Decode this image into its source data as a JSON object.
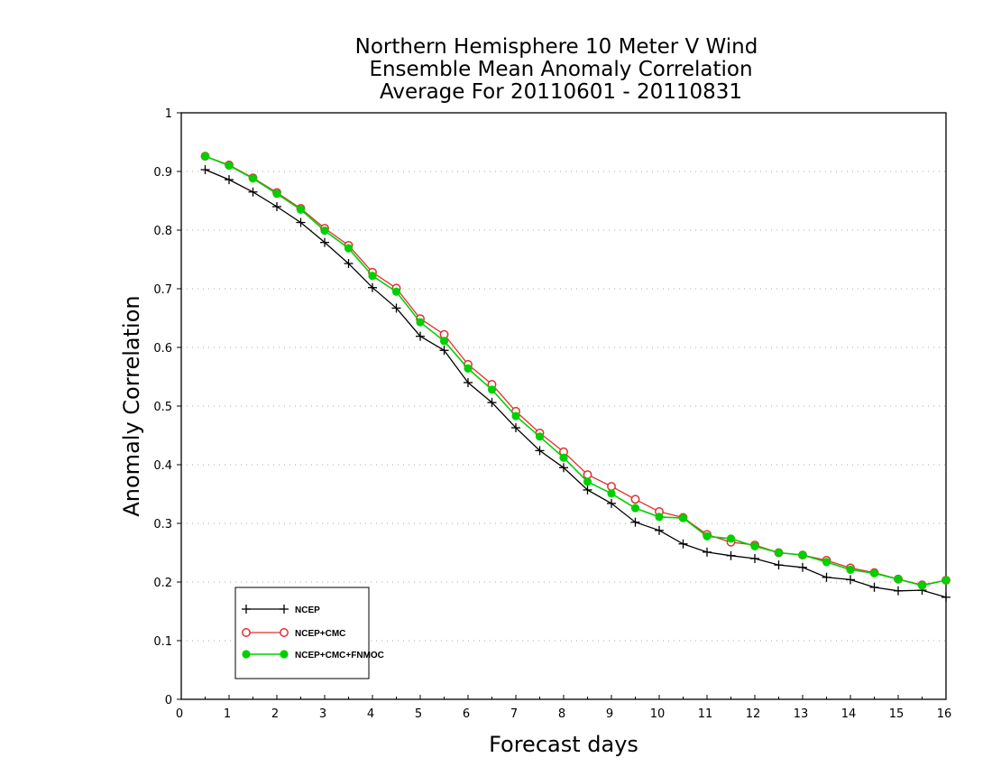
{
  "chart_data": {
    "type": "line",
    "title_lines": [
      "Northern Hemisphere 10 Meter V Wind",
      "Ensemble Mean Anomaly Correlation",
      "Average For 20110601 - 20110831"
    ],
    "xlabel": "Forecast days",
    "ylabel": "Anomaly Correlation",
    "xlim": [
      0,
      16
    ],
    "ylim": [
      0,
      1
    ],
    "xticks": [
      "0",
      "1",
      "2",
      "3",
      "4",
      "5",
      "6",
      "7",
      "8",
      "9",
      "10",
      "11",
      "12",
      "13",
      "14",
      "15",
      "16"
    ],
    "yticks": [
      "0",
      "0.1",
      "0.2",
      "0.3",
      "0.4",
      "0.5",
      "0.6",
      "0.7",
      "0.8",
      "0.9",
      "1"
    ],
    "grid": "horizontal dotted",
    "legend_position": "bottom-left",
    "x": [
      0.5,
      1,
      1.5,
      2,
      2.5,
      3,
      3.5,
      4,
      4.5,
      5,
      5.5,
      6,
      6.5,
      7,
      7.5,
      8,
      8.5,
      9,
      9.5,
      10,
      10.5,
      11,
      11.5,
      12,
      12.5,
      13,
      13.5,
      14,
      14.5,
      15,
      15.5,
      16
    ],
    "series": [
      {
        "name": "NCEP",
        "color": "#000000",
        "marker": "plus",
        "values": [
          0.903,
          0.886,
          0.865,
          0.84,
          0.813,
          0.779,
          0.743,
          0.702,
          0.667,
          0.619,
          0.595,
          0.54,
          0.506,
          0.463,
          0.424,
          0.395,
          0.357,
          0.334,
          0.302,
          0.288,
          0.265,
          0.251,
          0.245,
          0.24,
          0.229,
          0.225,
          0.208,
          0.204,
          0.191,
          0.185,
          0.186,
          0.174
        ]
      },
      {
        "name": "NCEP+CMC",
        "color": "#e03030",
        "marker": "open-circle",
        "values": [
          0.926,
          0.911,
          0.889,
          0.864,
          0.837,
          0.803,
          0.774,
          0.728,
          0.701,
          0.649,
          0.622,
          0.571,
          0.537,
          0.491,
          0.454,
          0.422,
          0.383,
          0.363,
          0.341,
          0.32,
          0.31,
          0.281,
          0.268,
          0.263,
          0.25,
          0.246,
          0.237,
          0.224,
          0.216,
          0.205,
          0.195,
          0.203
        ]
      },
      {
        "name": "NCEP+CMC+FNMOC",
        "color": "#00d000",
        "marker": "filled-circle",
        "values": [
          0.926,
          0.91,
          0.888,
          0.862,
          0.835,
          0.799,
          0.769,
          0.722,
          0.695,
          0.643,
          0.611,
          0.564,
          0.528,
          0.483,
          0.448,
          0.412,
          0.371,
          0.351,
          0.326,
          0.311,
          0.309,
          0.278,
          0.274,
          0.261,
          0.25,
          0.246,
          0.234,
          0.221,
          0.215,
          0.205,
          0.194,
          0.203
        ]
      }
    ]
  }
}
